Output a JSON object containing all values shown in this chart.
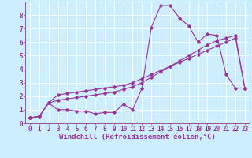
{
  "background_color": "#cceeff",
  "grid_color": "#ffffff",
  "line_color": "#993399",
  "marker": "D",
  "xlabel": "Windchill (Refroidissement éolien,°C)",
  "xlabel_fontsize": 6.5,
  "tick_fontsize": 5.5,
  "xlim": [
    -0.5,
    23.5
  ],
  "ylim": [
    0,
    9
  ],
  "xticks": [
    0,
    1,
    2,
    3,
    4,
    5,
    6,
    7,
    8,
    9,
    10,
    11,
    12,
    13,
    14,
    15,
    16,
    17,
    18,
    19,
    20,
    21,
    22,
    23
  ],
  "yticks": [
    0,
    1,
    2,
    3,
    4,
    5,
    6,
    7,
    8
  ],
  "line1_x": [
    0,
    1,
    2,
    3,
    4,
    5,
    6,
    7,
    8,
    9,
    10,
    11,
    12,
    13,
    14,
    15,
    16,
    17,
    18,
    19,
    20,
    21,
    22,
    23
  ],
  "line1_y": [
    0.4,
    0.5,
    1.5,
    1.0,
    1.0,
    0.9,
    0.9,
    0.7,
    0.8,
    0.8,
    1.4,
    1.0,
    2.6,
    7.1,
    8.7,
    8.7,
    7.8,
    7.2,
    6.0,
    6.6,
    6.5,
    3.6,
    2.6,
    2.6
  ],
  "line2_x": [
    0,
    1,
    2,
    3,
    4,
    5,
    6,
    7,
    8,
    9,
    10,
    11,
    12,
    13,
    14,
    15,
    16,
    17,
    18,
    19,
    20,
    21,
    22,
    23
  ],
  "line2_y": [
    0.4,
    0.5,
    1.5,
    1.7,
    1.8,
    1.9,
    2.0,
    2.1,
    2.2,
    2.3,
    2.5,
    2.7,
    3.0,
    3.4,
    3.8,
    4.2,
    4.6,
    5.0,
    5.4,
    5.8,
    6.1,
    6.3,
    6.5,
    2.6
  ],
  "line3_x": [
    0,
    1,
    2,
    3,
    4,
    5,
    6,
    7,
    8,
    9,
    10,
    11,
    12,
    13,
    14,
    15,
    16,
    17,
    18,
    19,
    20,
    21,
    22,
    23
  ],
  "line3_y": [
    0.4,
    0.5,
    1.5,
    2.1,
    2.2,
    2.3,
    2.4,
    2.5,
    2.6,
    2.7,
    2.8,
    3.0,
    3.3,
    3.6,
    3.9,
    4.2,
    4.5,
    4.8,
    5.1,
    5.4,
    5.7,
    6.0,
    6.3,
    2.6
  ]
}
